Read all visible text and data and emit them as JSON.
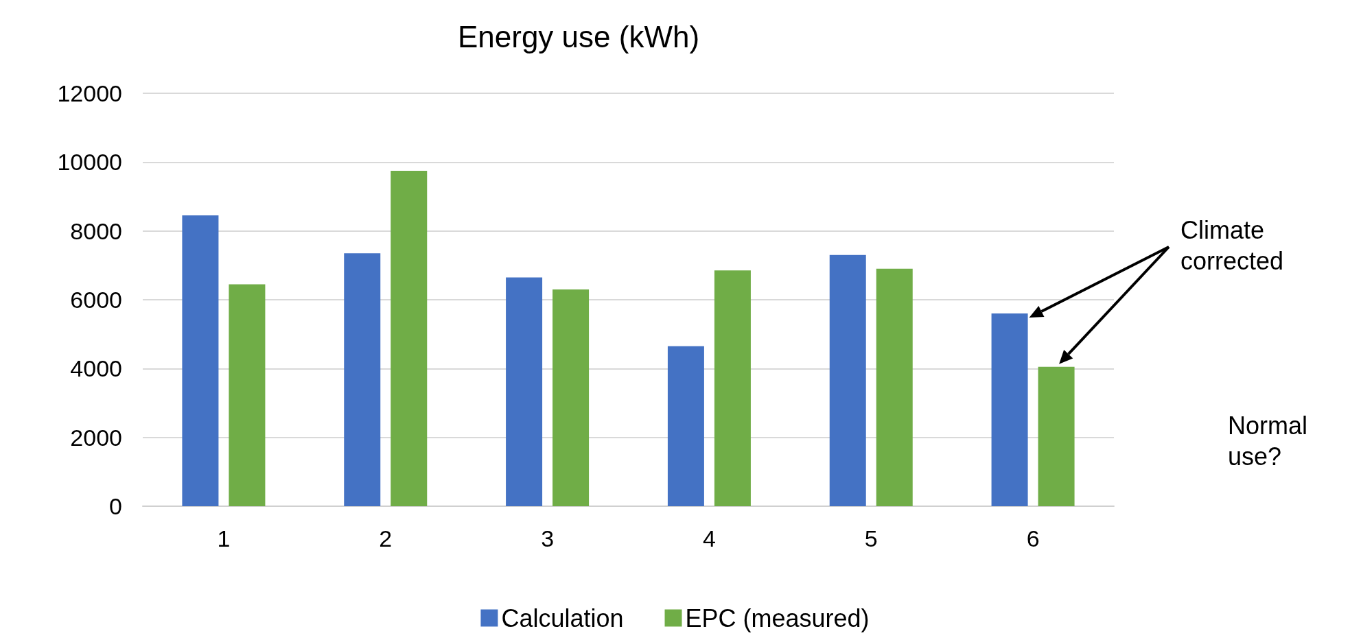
{
  "chart_data": {
    "type": "bar",
    "title": "Energy use (kWh)",
    "categories": [
      "1",
      "2",
      "3",
      "4",
      "5",
      "6"
    ],
    "series": [
      {
        "name": "Calculation",
        "color": "#4472c4",
        "values": [
          8450,
          7350,
          6650,
          4650,
          7300,
          5600
        ]
      },
      {
        "name": "EPC (measured)",
        "color": "#70ad47",
        "values": [
          6450,
          9750,
          6300,
          6850,
          6900,
          4050
        ]
      }
    ],
    "ylim": [
      0,
      12000
    ],
    "yticks": [
      0,
      2000,
      4000,
      6000,
      8000,
      10000,
      12000
    ],
    "grid": "y",
    "legend": "bottom",
    "annotations": [
      "Climate\ncorrected",
      "Normal\nuse?"
    ]
  }
}
